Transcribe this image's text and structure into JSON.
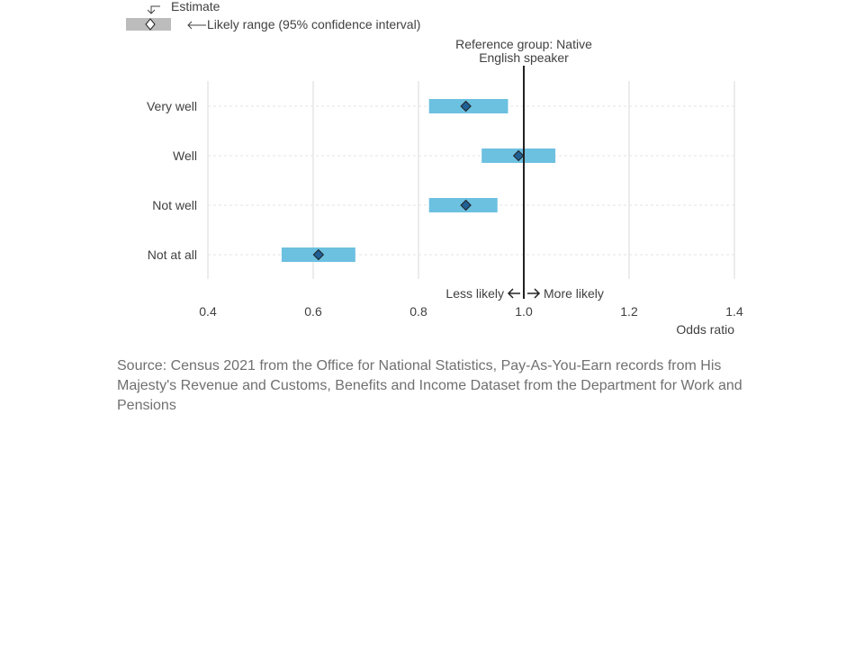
{
  "chart_data": {
    "type": "forest",
    "categories": [
      "Very well",
      "Well",
      "Not well",
      "Not at all"
    ],
    "estimates": [
      0.89,
      0.99,
      0.89,
      0.61
    ],
    "ci_low": [
      0.82,
      0.92,
      0.82,
      0.54
    ],
    "ci_high": [
      0.97,
      1.06,
      0.95,
      0.68
    ],
    "reference_value": 1.0,
    "reference_label_line1": "Reference group: Native",
    "reference_label_line2": "English speaker",
    "xlabel": "Odds ratio",
    "xlim": [
      0.4,
      1.4
    ],
    "xticks": [
      0.4,
      0.6,
      0.8,
      1.0,
      1.2,
      1.4
    ],
    "xtick_labels": [
      "0.4",
      "0.6",
      "0.8",
      "1.0",
      "1.2",
      "1.4"
    ],
    "grid": true,
    "less_likely_label": "Less likely",
    "more_likely_label": "More likely",
    "legend": {
      "estimate_label": "Estimate",
      "range_label": "Likely range (95% confidence interval)",
      "placement": "top-left"
    },
    "colors": {
      "ci_bar": "#6cc0e0",
      "marker_fill": "#206095",
      "marker_stroke": "#222222",
      "legend_bar": "#bcbcbd",
      "reference_line": "#222222",
      "grid": "#d9d9d9"
    }
  },
  "source": "Source: Census 2021 from the Office for National Statistics, Pay-As-You-Earn records from His Majesty's Revenue and Customs, Benefits and Income Dataset from the Department for Work and Pensions"
}
